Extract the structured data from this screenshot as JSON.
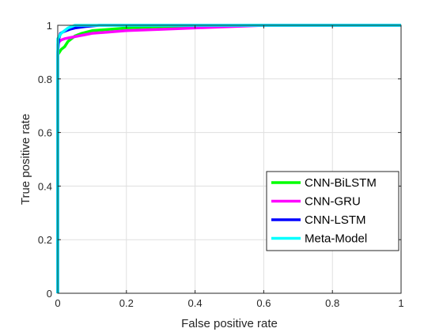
{
  "chart_data": {
    "type": "line",
    "title": "",
    "xlabel": "False positive rate",
    "ylabel": "True positive rate",
    "xlim": [
      0,
      1
    ],
    "ylim": [
      0,
      1
    ],
    "xticks": [
      "0",
      "0.2",
      "0.4",
      "0.6",
      "0.8",
      "1"
    ],
    "yticks": [
      "0",
      "0.2",
      "0.4",
      "0.6",
      "0.8",
      "1"
    ],
    "grid": true,
    "legend_position": "bottom-right",
    "series": [
      {
        "name": "CNN-BiLSTM",
        "color": "#00ff00",
        "x": [
          0,
          0,
          0.005,
          0.01,
          0.02,
          0.03,
          0.04,
          0.05,
          0.07,
          0.1,
          0.15,
          0.2,
          0.3,
          0.4,
          0.6,
          1
        ],
        "y": [
          0,
          0.89,
          0.9,
          0.91,
          0.92,
          0.94,
          0.95,
          0.96,
          0.97,
          0.98,
          0.985,
          0.99,
          0.995,
          0.998,
          1,
          1
        ]
      },
      {
        "name": "CNN-GRU",
        "color": "#ff00ff",
        "x": [
          0,
          0,
          0.005,
          0.01,
          0.02,
          0.04,
          0.06,
          0.08,
          0.1,
          0.15,
          0.2,
          0.3,
          0.4,
          0.5,
          0.6,
          1
        ],
        "y": [
          0,
          0.93,
          0.94,
          0.945,
          0.95,
          0.955,
          0.96,
          0.965,
          0.97,
          0.975,
          0.98,
          0.985,
          0.99,
          0.995,
          1,
          1
        ]
      },
      {
        "name": "CNN-LSTM",
        "color": "#0000ff",
        "x": [
          0,
          0,
          0.003,
          0.008,
          0.015,
          0.025,
          0.035,
          0.05,
          0.08,
          0.12,
          1
        ],
        "y": [
          0,
          0.9,
          0.95,
          0.97,
          0.975,
          0.98,
          0.985,
          0.99,
          0.995,
          1,
          1
        ]
      },
      {
        "name": "Meta-Model",
        "color": "#00ffff",
        "x": [
          0,
          0,
          0.01,
          0.02,
          0.03,
          0.04,
          0.05,
          1
        ],
        "y": [
          0,
          0.95,
          0.97,
          0.98,
          0.99,
          0.995,
          1,
          1
        ]
      }
    ]
  }
}
